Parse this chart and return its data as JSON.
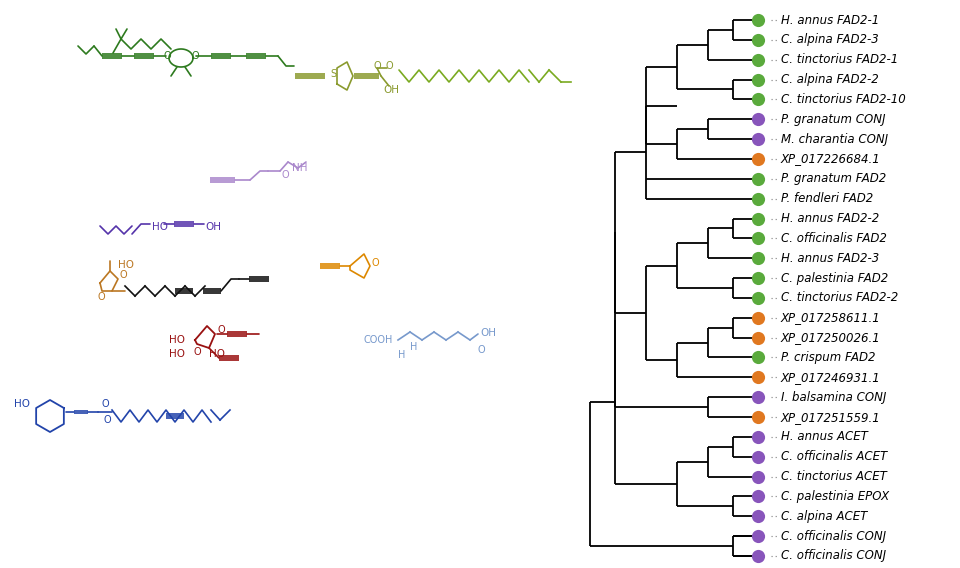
{
  "tree_leaves": [
    {
      "label": "H. annus FAD2-1",
      "color": "#5aaa3c",
      "y": 27
    },
    {
      "label": "C. alpina FAD2-3",
      "color": "#5aaa3c",
      "y": 26
    },
    {
      "label": "C. tinctorius FAD2-1",
      "color": "#5aaa3c",
      "y": 25
    },
    {
      "label": "C. alpina FAD2-2",
      "color": "#5aaa3c",
      "y": 24
    },
    {
      "label": "C. tinctorius FAD2-10",
      "color": "#5aaa3c",
      "y": 23
    },
    {
      "label": "P. granatum CONJ",
      "color": "#8855bb",
      "y": 22
    },
    {
      "label": "M. charantia CONJ",
      "color": "#8855bb",
      "y": 21
    },
    {
      "label": "XP_017226684.1",
      "color": "#e07820",
      "y": 20
    },
    {
      "label": "P. granatum FAD2",
      "color": "#5aaa3c",
      "y": 19
    },
    {
      "label": "P. fendleri FAD2",
      "color": "#5aaa3c",
      "y": 18
    },
    {
      "label": "H. annus FAD2-2",
      "color": "#5aaa3c",
      "y": 17
    },
    {
      "label": "C. officinalis FAD2",
      "color": "#5aaa3c",
      "y": 16
    },
    {
      "label": "H. annus FAD2-3",
      "color": "#5aaa3c",
      "y": 15
    },
    {
      "label": "C. palestinia FAD2",
      "color": "#5aaa3c",
      "y": 14
    },
    {
      "label": "C. tinctorius FAD2-2",
      "color": "#5aaa3c",
      "y": 13
    },
    {
      "label": "XP_017258611.1",
      "color": "#e07820",
      "y": 12
    },
    {
      "label": "XP_017250026.1",
      "color": "#e07820",
      "y": 11
    },
    {
      "label": "P. crispum FAD2",
      "color": "#5aaa3c",
      "y": 10
    },
    {
      "label": "XP_017246931.1",
      "color": "#e07820",
      "y": 9
    },
    {
      "label": "I. balsamina CONJ",
      "color": "#8855bb",
      "y": 8
    },
    {
      "label": "XP_017251559.1",
      "color": "#e07820",
      "y": 7
    },
    {
      "label": "H. annus ACET",
      "color": "#8855bb",
      "y": 6
    },
    {
      "label": "C. officinalis ACET",
      "color": "#8855bb",
      "y": 5
    },
    {
      "label": "C. tinctorius ACET",
      "color": "#8855bb",
      "y": 4
    },
    {
      "label": "C. palestinia EPOX",
      "color": "#8855bb",
      "y": 3
    },
    {
      "label": "C. alpina ACET",
      "color": "#8855bb",
      "y": 2
    },
    {
      "label": "C. officinalis CONJ",
      "color": "#8855bb",
      "y": 1
    },
    {
      "label": "C. officinalis CONJ",
      "color": "#8855bb",
      "y": 0
    }
  ],
  "bg_color": "#ffffff",
  "label_fontsize": 8.5,
  "circle_size": 90,
  "lw": 1.3
}
